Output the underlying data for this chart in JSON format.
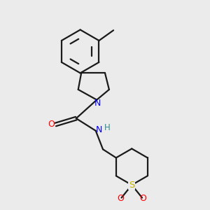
{
  "bg_color": "#ebebeb",
  "bond_color": "#1a1a1a",
  "N_color": "#0000ff",
  "O_color": "#ff0000",
  "S_color": "#c8b400",
  "NH_color": "#2e8b8b",
  "line_width": 1.6,
  "figsize": [
    3.0,
    3.0
  ],
  "dpi": 100,
  "xlim": [
    0,
    10
  ],
  "ylim": [
    0,
    10
  ]
}
